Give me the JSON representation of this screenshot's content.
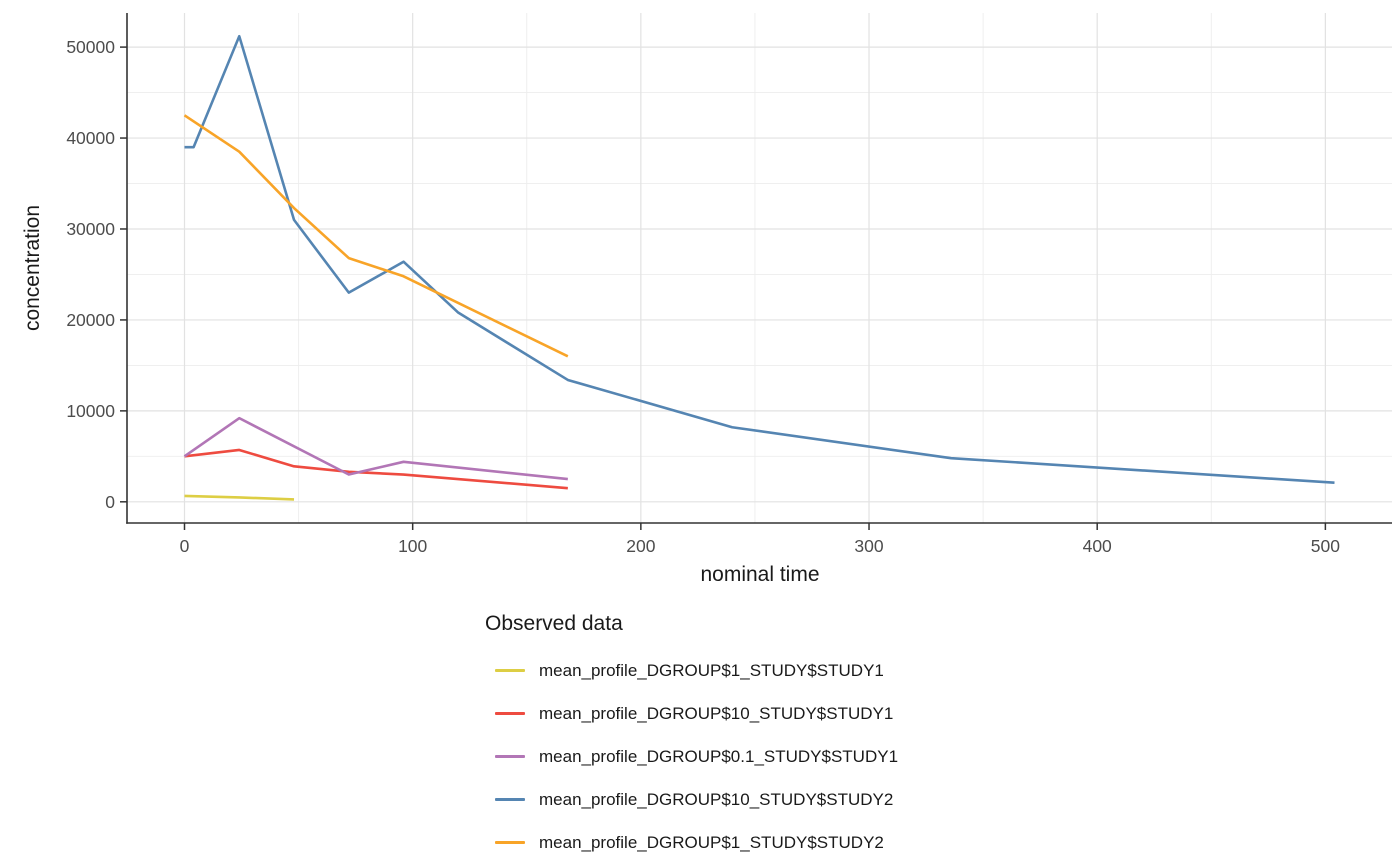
{
  "chart_data": {
    "type": "line",
    "title": "",
    "xlabel": "nominal time",
    "ylabel": "concentration",
    "legend_title": "Observed data",
    "legend_position": "bottom",
    "grid": true,
    "xlim": [
      -25.2,
      529.2
    ],
    "ylim": [
      -2330,
      53750
    ],
    "x_ticks": [
      0,
      100,
      200,
      300,
      400,
      500
    ],
    "y_ticks": [
      0,
      10000,
      20000,
      30000,
      40000,
      50000
    ],
    "x_minor_ticks": [
      50,
      150,
      250,
      350,
      450
    ],
    "y_minor_ticks": [
      5000,
      15000,
      25000,
      35000,
      45000
    ],
    "colors": {
      "axis": "#333333",
      "tick_label": "#4d4d4d",
      "grid_major": "#e2e2e2",
      "grid_minor": "#ededed"
    },
    "series": [
      {
        "name": "mean_profile_DGROUP$1_STUDY$STUDY1",
        "color": "#ddce44",
        "points": [
          [
            0,
            650
          ],
          [
            24,
            480
          ],
          [
            48,
            260
          ]
        ]
      },
      {
        "name": "mean_profile_DGROUP$10_STUDY$STUDY1",
        "color": "#ee4b40",
        "points": [
          [
            0,
            5000
          ],
          [
            24,
            5700
          ],
          [
            48,
            3900
          ],
          [
            72,
            3300
          ],
          [
            96,
            3000
          ],
          [
            168,
            1500
          ]
        ]
      },
      {
        "name": "mean_profile_DGROUP$0.1_STUDY$STUDY1",
        "color": "#b276b6",
        "points": [
          [
            0,
            5000
          ],
          [
            24,
            9200
          ],
          [
            72,
            3000
          ],
          [
            96,
            4400
          ],
          [
            168,
            2500
          ]
        ]
      },
      {
        "name": "mean_profile_DGROUP$10_STUDY$STUDY2",
        "color": "#5585b2",
        "points": [
          [
            0,
            39000
          ],
          [
            4,
            39000
          ],
          [
            24,
            51200
          ],
          [
            48,
            31000
          ],
          [
            72,
            23000
          ],
          [
            96,
            26400
          ],
          [
            120,
            20800
          ],
          [
            168,
            13400
          ],
          [
            240,
            8200
          ],
          [
            336,
            4800
          ],
          [
            504,
            2100
          ]
        ]
      },
      {
        "name": "mean_profile_DGROUP$1_STUDY$STUDY2",
        "color": "#f8a428",
        "points": [
          [
            0,
            42500
          ],
          [
            24,
            38500
          ],
          [
            48,
            32300
          ],
          [
            72,
            26800
          ],
          [
            96,
            24800
          ],
          [
            168,
            16000
          ]
        ]
      }
    ]
  }
}
